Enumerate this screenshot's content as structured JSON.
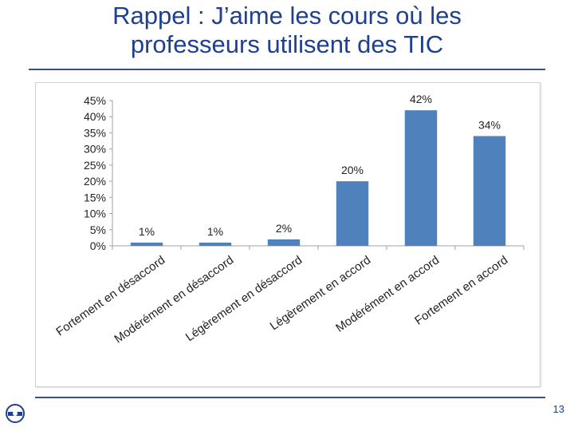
{
  "slide": {
    "title_line1": "Rappel : J’aime les cours où les",
    "title_line2": "professeurs utilisent des TIC",
    "page_number": "13",
    "accent_color": "#3a4ea0"
  },
  "chart_data": {
    "type": "bar",
    "categories": [
      "Fortement en désaccord",
      "Modérément en désaccord",
      "Légèrement en désaccord",
      "Légèrement en accord",
      "Modérément en accord",
      "Fortement en accord"
    ],
    "values": [
      1,
      1,
      2,
      20,
      42,
      34
    ],
    "data_labels": [
      "1%",
      "1%",
      "2%",
      "20%",
      "42%",
      "34%"
    ],
    "ylim": [
      0,
      45
    ],
    "yticks": [
      0,
      5,
      10,
      15,
      20,
      25,
      30,
      35,
      40,
      45
    ],
    "ytick_labels": [
      "0%",
      "5%",
      "10%",
      "15%",
      "20%",
      "25%",
      "30%",
      "35%",
      "40%",
      "45%"
    ],
    "bar_color": "#4f81bd",
    "grid": false,
    "legend": "none"
  }
}
